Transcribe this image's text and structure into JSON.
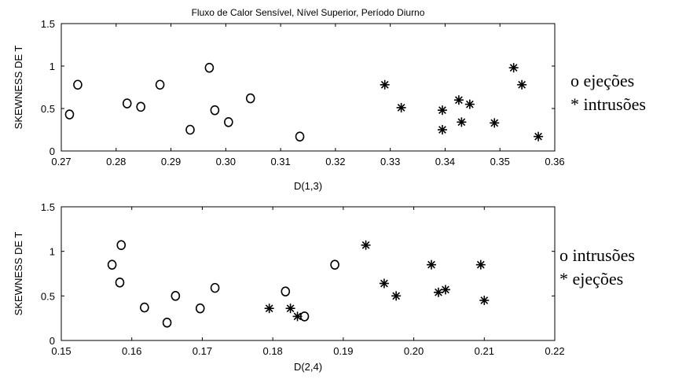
{
  "chart_data": [
    {
      "type": "scatter",
      "title": "Fluxo de Calor Sensível, Nível Superior, Período Diurno",
      "xlabel": "D(1,3)",
      "ylabel": "SKEWNESS DE T",
      "xlim": [
        0.27,
        0.36
      ],
      "ylim": [
        0,
        1.5
      ],
      "xticks": [
        "0.27",
        "0.28",
        "0.29",
        "0.30",
        "0.31",
        "0.32",
        "0.33",
        "0.34",
        "0.35",
        "0.36"
      ],
      "yticks": [
        "0",
        "0.5",
        "1",
        "1.5"
      ],
      "grid": false,
      "legend_position": "right",
      "series": [
        {
          "name": "o ejeções",
          "marker": "circle",
          "x": [
            0.2715,
            0.273,
            0.282,
            0.2845,
            0.288,
            0.2935,
            0.297,
            0.298,
            0.3005,
            0.3045,
            0.3135
          ],
          "y": [
            0.43,
            0.78,
            0.56,
            0.52,
            0.78,
            0.25,
            0.98,
            0.48,
            0.34,
            0.62,
            0.17
          ]
        },
        {
          "name": "* intrusões",
          "marker": "star",
          "x": [
            0.329,
            0.332,
            0.3395,
            0.3395,
            0.3425,
            0.343,
            0.3445,
            0.349,
            0.3525,
            0.354,
            0.357
          ],
          "y": [
            0.78,
            0.51,
            0.48,
            0.25,
            0.6,
            0.34,
            0.55,
            0.33,
            0.98,
            0.78,
            0.17
          ]
        }
      ]
    },
    {
      "type": "scatter",
      "title": "",
      "xlabel": "D(2,4)",
      "ylabel": "SKEWNESS DE T",
      "xlim": [
        0.15,
        0.22
      ],
      "ylim": [
        0,
        1.5
      ],
      "xticks": [
        "0.15",
        "0.16",
        "0.17",
        "0.18",
        "0.19",
        "0.20",
        "0.21",
        "0.22"
      ],
      "yticks": [
        "0",
        "0.5",
        "1",
        "1.5"
      ],
      "grid": false,
      "legend_position": "right",
      "series": [
        {
          "name": "o intrusões",
          "marker": "circle",
          "x": [
            0.1572,
            0.1583,
            0.1585,
            0.1618,
            0.165,
            0.1662,
            0.1697,
            0.1718,
            0.1818,
            0.1845,
            0.1888
          ],
          "y": [
            0.85,
            0.65,
            1.07,
            0.37,
            0.2,
            0.5,
            0.36,
            0.59,
            0.55,
            0.27,
            0.85
          ]
        },
        {
          "name": "* ejeções",
          "marker": "star",
          "x": [
            0.1795,
            0.1825,
            0.1835,
            0.1932,
            0.1958,
            0.1975,
            0.2025,
            0.2035,
            0.2045,
            0.2095,
            0.21
          ],
          "y": [
            0.36,
            0.36,
            0.27,
            1.07,
            0.64,
            0.5,
            0.85,
            0.54,
            0.57,
            0.85,
            0.45
          ]
        }
      ]
    }
  ]
}
